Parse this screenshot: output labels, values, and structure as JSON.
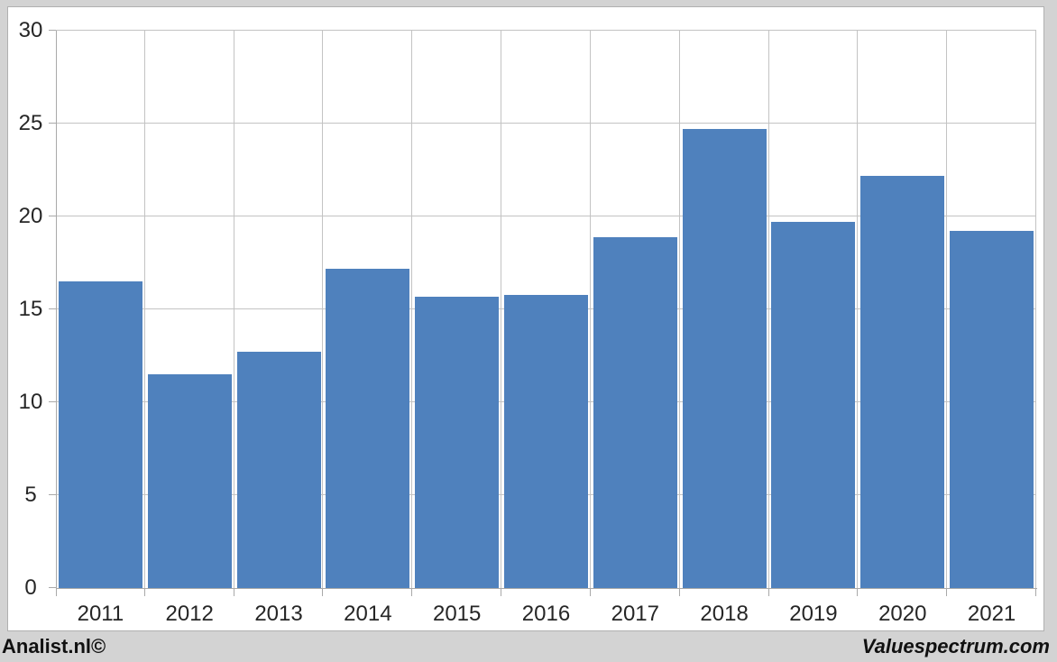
{
  "branding": {
    "left": "Analist.nl©",
    "right": "Valuespectrum.com"
  },
  "chart_data": {
    "type": "bar",
    "title": "",
    "categories": [
      "2011",
      "2012",
      "2013",
      "2014",
      "2015",
      "2016",
      "2017",
      "2018",
      "2019",
      "2020",
      "2021"
    ],
    "values": [
      16.5,
      11.5,
      12.7,
      17.2,
      15.7,
      15.8,
      18.9,
      24.7,
      19.7,
      22.2,
      19.2
    ],
    "xlabel": "",
    "ylabel": "",
    "ylim": [
      0,
      30
    ],
    "yticks": [
      0,
      5,
      10,
      15,
      20,
      25,
      30
    ],
    "grid": true,
    "legend": false,
    "colors": {
      "bar": "#4f81bd",
      "gridline": "#c3c3c3",
      "axis": "#a9a9a9",
      "tick_label": "#262626",
      "frame_background": "#d3d3d3",
      "plot_background": "#ffffff",
      "panel_border": "#b0b0b0",
      "footer_text": "#111111"
    }
  }
}
